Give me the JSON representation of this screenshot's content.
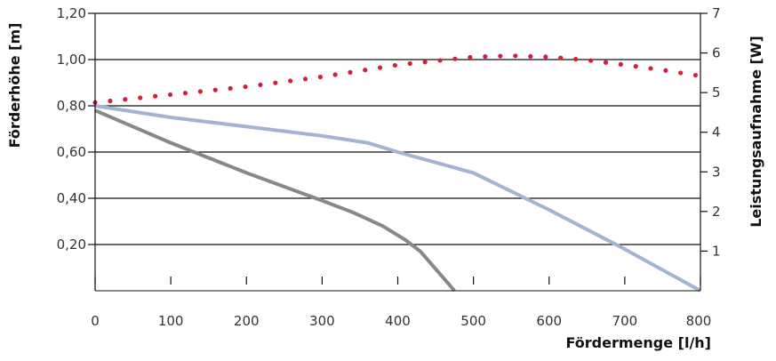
{
  "chart_data": {
    "type": "line",
    "title": "",
    "xlabel": "Fördermenge [l/h]",
    "ylabel": "Förderhöhe [m]",
    "y2label": "Leistungsaufnahme [W]",
    "xlim": [
      0,
      800
    ],
    "ylim": [
      0,
      1.2
    ],
    "y2lim": [
      0,
      7
    ],
    "grid": true,
    "x_ticks": [
      "0",
      "100",
      "200",
      "300",
      "400",
      "500",
      "600",
      "700",
      "800"
    ],
    "y_ticks": [
      "0,20",
      "0,40",
      "0,60",
      "0,80",
      "1,00",
      "1,20"
    ],
    "y2_ticks": [
      "1",
      "2",
      "3",
      "4",
      "5",
      "6",
      "7"
    ],
    "series": [
      {
        "axis": "left",
        "style": "solid",
        "color": "#a3b3d3",
        "x": [
          0,
          100,
          200,
          300,
          360,
          400,
          500,
          600,
          700,
          800
        ],
        "y": [
          0.8,
          0.75,
          0.71,
          0.67,
          0.64,
          0.6,
          0.51,
          0.35,
          0.18,
          0.0
        ]
      },
      {
        "axis": "left",
        "style": "solid",
        "color": "#888888",
        "x": [
          0,
          100,
          200,
          300,
          340,
          380,
          410,
          430,
          475
        ],
        "y": [
          0.78,
          0.64,
          0.51,
          0.39,
          0.34,
          0.28,
          0.22,
          0.17,
          0.0
        ]
      },
      {
        "axis": "right",
        "style": "dotted",
        "color": "#d0203a",
        "x": [
          0,
          100,
          200,
          300,
          400,
          450,
          500,
          550,
          600,
          650,
          700,
          750,
          800
        ],
        "y": [
          4.75,
          4.95,
          5.15,
          5.4,
          5.7,
          5.8,
          5.9,
          5.93,
          5.9,
          5.82,
          5.7,
          5.57,
          5.42
        ]
      }
    ]
  }
}
